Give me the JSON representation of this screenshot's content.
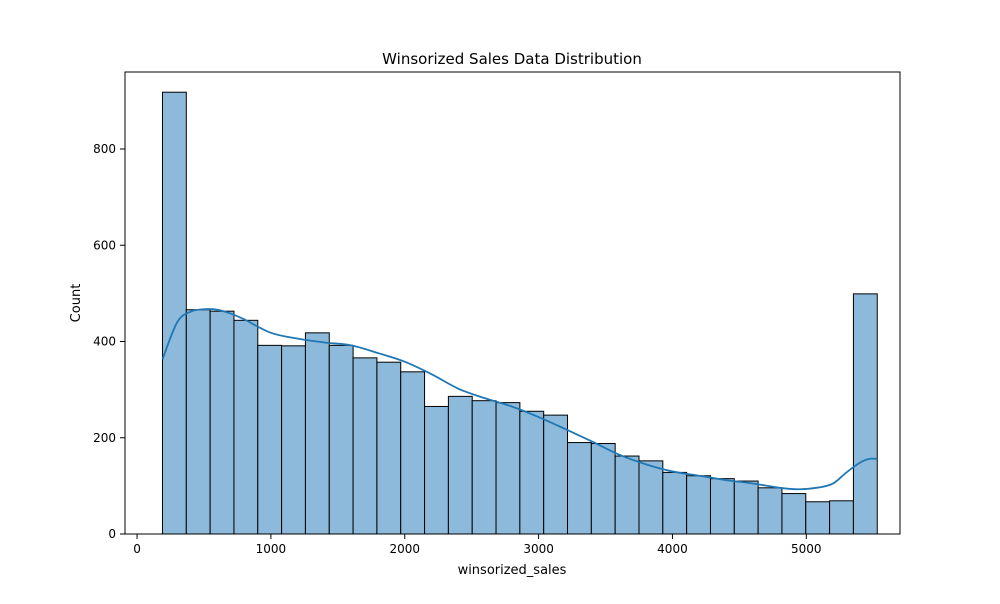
{
  "chart_data": {
    "type": "bar",
    "title": "Winsorized Sales Data Distribution",
    "xlabel": "winsorized_sales",
    "ylabel": "Count",
    "xlim": [
      -90,
      5700
    ],
    "ylim": [
      0,
      960
    ],
    "xticks": [
      0,
      1000,
      2000,
      3000,
      4000,
      5000
    ],
    "yticks": [
      0,
      200,
      400,
      600,
      800
    ],
    "bins": {
      "start": 190,
      "width": 178,
      "counts": [
        918,
        466,
        463,
        444,
        392,
        391,
        418,
        392,
        366,
        357,
        337,
        265,
        286,
        277,
        273,
        255,
        247,
        190,
        188,
        162,
        152,
        128,
        121,
        115,
        110,
        96,
        84,
        67,
        69,
        499
      ]
    },
    "kde": {
      "x": [
        190,
        300,
        400,
        500,
        600,
        700,
        800,
        1000,
        1200,
        1400,
        1600,
        1800,
        2000,
        2200,
        2400,
        2600,
        2800,
        3000,
        3200,
        3400,
        3600,
        3800,
        4000,
        4200,
        4400,
        4600,
        4800,
        4950,
        5100,
        5200,
        5300,
        5400,
        5470,
        5530
      ],
      "y": [
        363,
        440,
        462,
        467,
        466,
        458,
        446,
        418,
        406,
        398,
        392,
        376,
        358,
        332,
        302,
        282,
        265,
        243,
        218,
        192,
        165,
        145,
        130,
        121,
        112,
        105,
        96,
        93,
        97,
        105,
        128,
        148,
        156,
        156
      ]
    },
    "colors": {
      "bar_fill": "#8dbadb",
      "bar_edge": "#000000",
      "kde_line": "#1f77b4"
    },
    "grid": false,
    "legend": "none"
  }
}
